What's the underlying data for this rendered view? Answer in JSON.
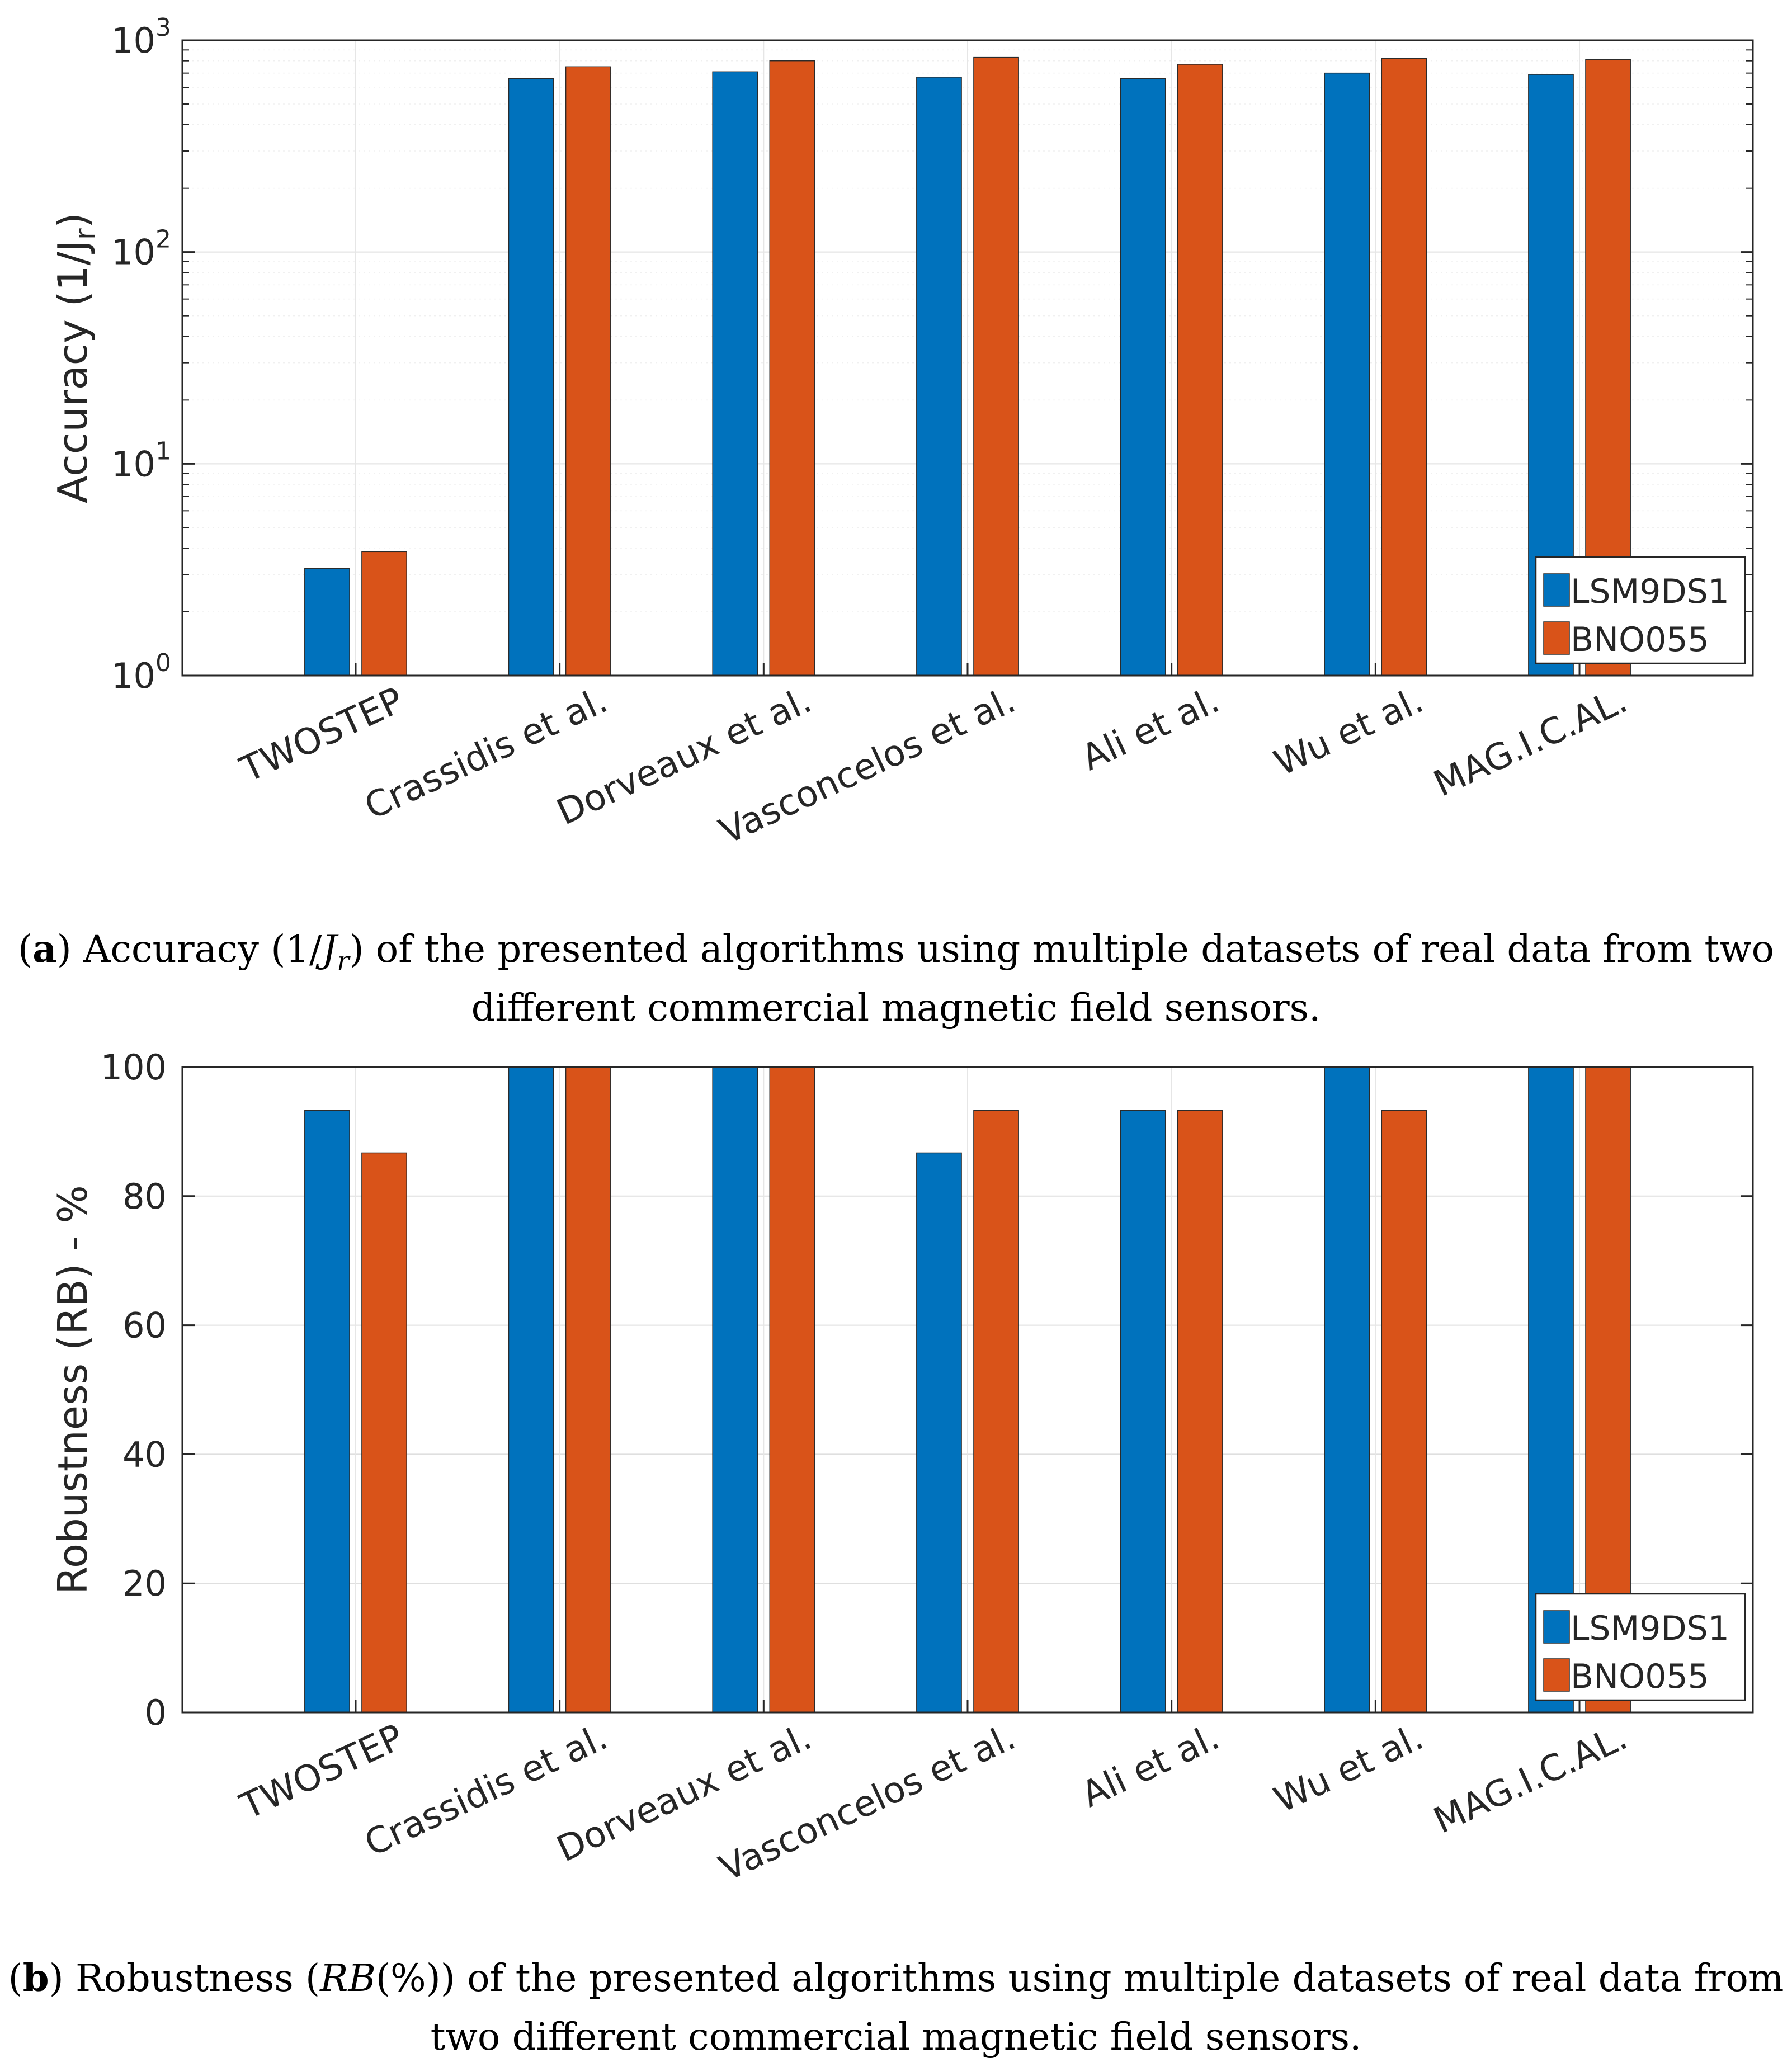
{
  "chart_data": [
    {
      "type": "bar",
      "panel": "a",
      "title": "",
      "xlabel": "",
      "ylabel": "Accuracy (1/J",
      "ylabel_sub": "r",
      "ylabel_close": ")",
      "yscale": "log",
      "ylim": [
        1,
        1000
      ],
      "yticks": [
        {
          "value": 1,
          "base": "10",
          "exp": "0"
        },
        {
          "value": 10,
          "base": "10",
          "exp": "1"
        },
        {
          "value": 100,
          "base": "10",
          "exp": "2"
        },
        {
          "value": 1000,
          "base": "10",
          "exp": "3"
        }
      ],
      "grid": true,
      "legend_position": "bottom-right",
      "categories": [
        "TWOSTEP",
        "Crassidis et al.",
        "Dorveaux et al.",
        "Vasconcelos et al.",
        "Ali et al.",
        "Wu et al.",
        "MAG.I.C.AL."
      ],
      "series": [
        {
          "name": "LSM9DS1",
          "color": "#0072BD",
          "values": [
            3.2,
            660,
            710,
            670,
            660,
            700,
            690
          ]
        },
        {
          "name": "BNO055",
          "color": "#D95319",
          "values": [
            3.85,
            750,
            800,
            830,
            770,
            820,
            810
          ]
        }
      ]
    },
    {
      "type": "bar",
      "panel": "b",
      "title": "",
      "xlabel": "",
      "ylabel": "Robustness (RB) - %",
      "yscale": "linear",
      "ylim": [
        0,
        100
      ],
      "yticks": [
        {
          "value": 0,
          "label": "0"
        },
        {
          "value": 20,
          "label": "20"
        },
        {
          "value": 40,
          "label": "40"
        },
        {
          "value": 60,
          "label": "60"
        },
        {
          "value": 80,
          "label": "80"
        },
        {
          "value": 100,
          "label": "100"
        }
      ],
      "grid": true,
      "legend_position": "bottom-right",
      "categories": [
        "TWOSTEP",
        "Crassidis et al.",
        "Dorveaux et al.",
        "Vasconcelos et al.",
        "Ali et al.",
        "Wu et al.",
        "MAG.I.C.AL."
      ],
      "series": [
        {
          "name": "LSM9DS1",
          "color": "#0072BD",
          "values": [
            93.3,
            100,
            100,
            86.7,
            93.3,
            100,
            100
          ]
        },
        {
          "name": "BNO055",
          "color": "#D95319",
          "values": [
            86.7,
            100,
            100,
            93.3,
            93.3,
            93.3,
            100
          ]
        }
      ]
    }
  ],
  "captions": {
    "a": {
      "tag": "a",
      "line1_before": "Accuracy (1/",
      "line1_sym": "J",
      "line1_sub": "r",
      "line1_after": ") of the presented algorithms using multiple datasets of real data from two",
      "line2": "different commercial magnetic field sensors."
    },
    "b": {
      "tag": "b",
      "line1_before": "Robustness (",
      "line1_sym": "RB",
      "line1_after": "(%)) of the presented algorithms using multiple datasets of real data from",
      "line2": "two different commercial magnetic field sensors."
    }
  }
}
